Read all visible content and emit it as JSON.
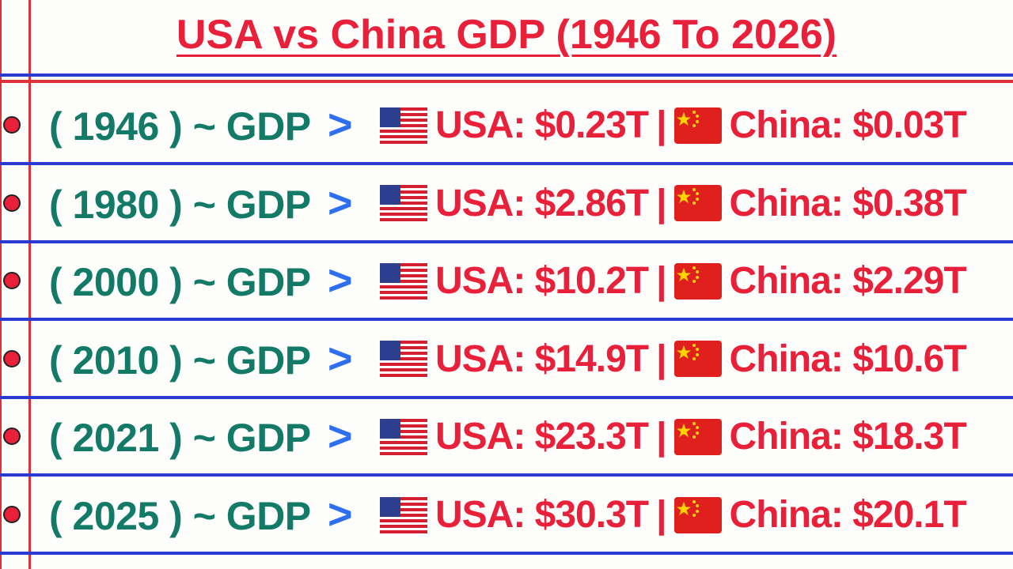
{
  "header": {
    "title": "USA vs China GDP (1946 To 2026)"
  },
  "rows": [
    {
      "label": "( 1946 ) ~ GDP",
      "arrow": ">",
      "usa": "USA: $0.23T",
      "separator": "|",
      "china": "China: $0.03T"
    },
    {
      "label": "( 1980 ) ~ GDP",
      "arrow": ">",
      "usa": "USA: $2.86T",
      "separator": "|",
      "china": "China: $0.38T"
    },
    {
      "label": "( 2000 ) ~ GDP",
      "arrow": ">",
      "usa": "USA: $10.2T",
      "separator": "|",
      "china": "China: $2.29T"
    },
    {
      "label": "( 2010 ) ~ GDP",
      "arrow": ">",
      "usa": "USA: $14.9T",
      "separator": "|",
      "china": "China: $10.6T"
    },
    {
      "label": "( 2021 ) ~ GDP",
      "arrow": ">",
      "usa": "USA: $23.3T",
      "separator": "|",
      "china": "China: $18.3T"
    },
    {
      "label": "( 2025 ) ~ GDP",
      "arrow": ">",
      "usa": "USA: $30.3T",
      "separator": "|",
      "china": "China: $20.1T"
    }
  ]
}
